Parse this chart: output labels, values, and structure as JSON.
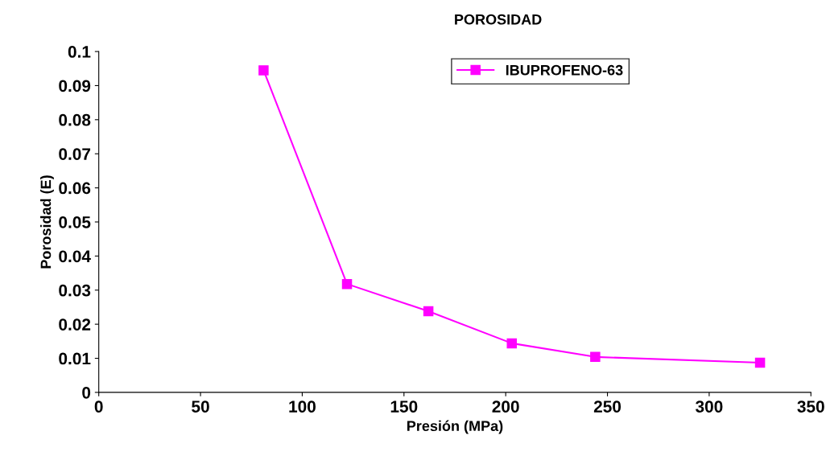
{
  "chart_data": {
    "type": "line",
    "title": "POROSIDAD",
    "xlabel": "Presión (MPa)",
    "ylabel": "Porosidad (E)",
    "x": [
      81,
      122,
      162,
      203,
      244,
      325
    ],
    "series": [
      {
        "name": "IBUPROFENO-63",
        "color": "#ff00ff",
        "values": [
          0.0945,
          0.0318,
          0.0238,
          0.0144,
          0.0104,
          0.0087
        ]
      }
    ],
    "xlim": [
      0,
      350
    ],
    "xticks": [
      0,
      50,
      100,
      150,
      200,
      250,
      300,
      350
    ],
    "ylim": [
      0,
      0.1
    ],
    "yticks": [
      0,
      0.01,
      0.02,
      0.03,
      0.04,
      0.05,
      0.06,
      0.07,
      0.08,
      0.09,
      0.1
    ],
    "grid": false,
    "legend": "top",
    "marker": "square",
    "line_style": "solid"
  }
}
